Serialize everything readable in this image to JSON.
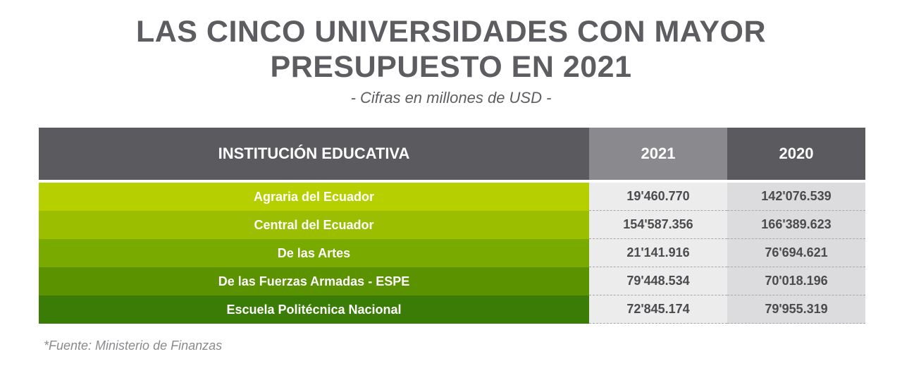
{
  "title_line1": "LAS CINCO UNIVERSIDADES CON MAYOR",
  "title_line2": "PRESUPUESTO EN 2021",
  "subtitle": "- Cifras en millones de USD -",
  "source": "*Fuente: Ministerio de Finanzas",
  "colors": {
    "header_dark": "#5a5a5f",
    "header_light": "#8a8a8e",
    "row_greens": [
      "#b6cf00",
      "#9bbe00",
      "#79aa00",
      "#5a9200",
      "#3b7c06"
    ]
  },
  "chart_data": {
    "type": "table",
    "title": "LAS CINCO UNIVERSIDADES CON MAYOR PRESUPUESTO EN 2021",
    "subtitle": "- Cifras en millones de USD -",
    "columns": [
      "INSTITUCIÓN EDUCATIVA",
      "2021",
      "2020"
    ],
    "rows": [
      {
        "institucion": "Agraria del Ecuador",
        "v2021": "19'460.770",
        "v2020": "142'076.539"
      },
      {
        "institucion": "Central del Ecuador",
        "v2021": "154'587.356",
        "v2020": "166'389.623"
      },
      {
        "institucion": "De las Artes",
        "v2021": "21'141.916",
        "v2020": "76'694.621"
      },
      {
        "institucion": "De las Fuerzas Armadas - ESPE",
        "v2021": "79'448.534",
        "v2020": "70'018.196"
      },
      {
        "institucion": "Escuela Politécnica Nacional",
        "v2021": "72'845.174",
        "v2020": "79'955.319"
      }
    ]
  }
}
